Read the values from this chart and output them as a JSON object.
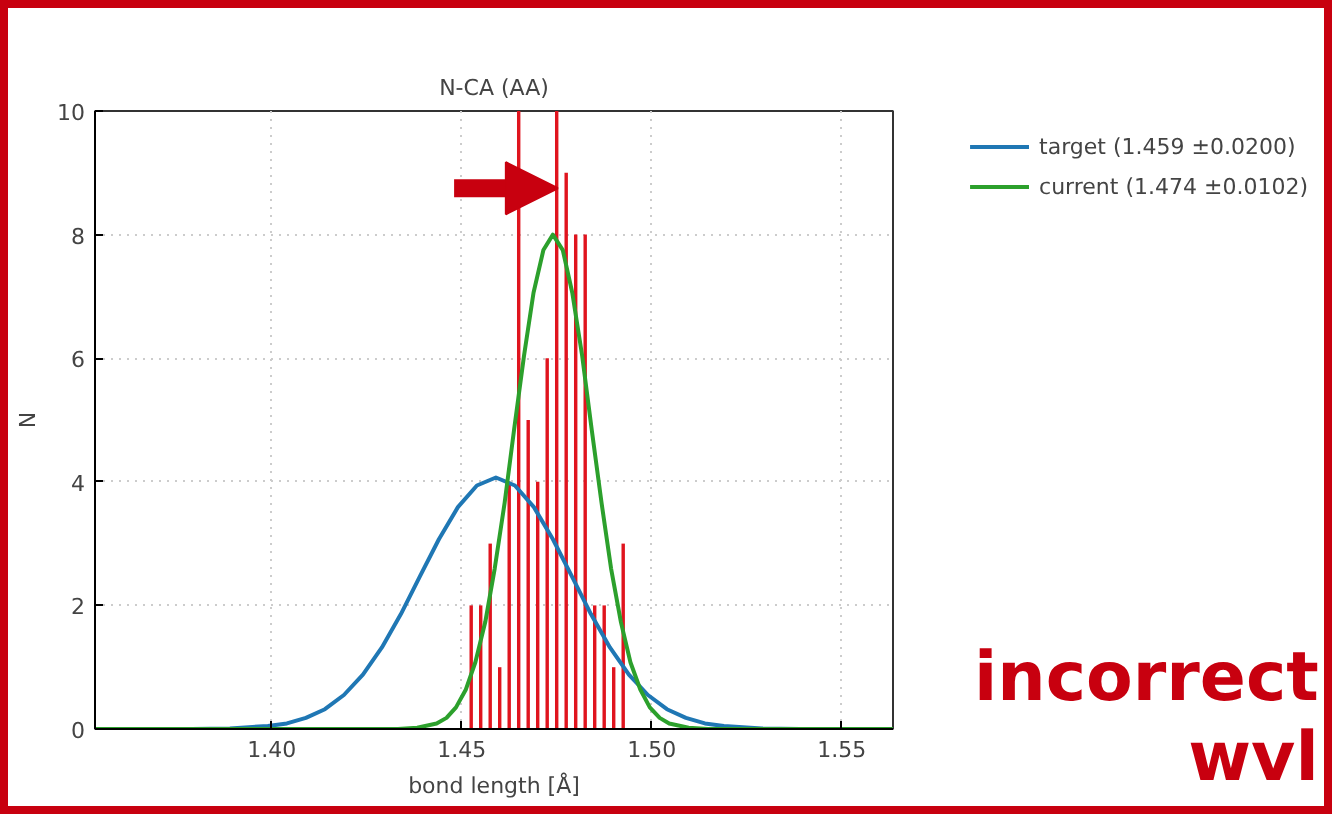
{
  "chart_data": {
    "type": "bar",
    "title": "N-CA (AA)",
    "xlabel": "bond length [Å]",
    "ylabel": "N",
    "xlim": [
      1.3535,
      1.5635
    ],
    "xticks": [
      {
        "value": 1.4,
        "label": "1.40"
      },
      {
        "value": 1.45,
        "label": "1.45"
      },
      {
        "value": 1.5,
        "label": "1.50"
      },
      {
        "value": 1.55,
        "label": "1.55"
      }
    ],
    "ylim": [
      0,
      10
    ],
    "yticks": [
      0,
      2,
      4,
      6,
      8,
      10
    ],
    "grid": true,
    "legend": "top right",
    "annotations": [
      "incorrect wvl"
    ],
    "series": [
      {
        "type": "bar",
        "color": "#e0141e",
        "x": [
          1.4525,
          1.455,
          1.4575,
          1.46,
          1.4625,
          1.465,
          1.4675,
          1.47,
          1.4725,
          1.475,
          1.4775,
          1.48,
          1.4825,
          1.485,
          1.4875,
          1.49,
          1.4925
        ],
        "values": [
          2,
          2,
          3,
          1,
          4,
          10,
          5,
          4,
          6,
          10,
          9,
          8,
          8,
          2,
          2,
          1,
          3
        ]
      },
      {
        "type": "line",
        "name": "target (1.459 ±0.0200)",
        "color": "#1f77b4",
        "x": [
          1.3535,
          1.379,
          1.389,
          1.399,
          1.404,
          1.409,
          1.414,
          1.419,
          1.424,
          1.429,
          1.434,
          1.439,
          1.444,
          1.449,
          1.454,
          1.459,
          1.464,
          1.469,
          1.474,
          1.479,
          1.484,
          1.489,
          1.494,
          1.499,
          1.504,
          1.509,
          1.514,
          1.519,
          1.529,
          1.539,
          1.5635
        ],
        "values": [
          0,
          0,
          0.01,
          0.05,
          0.09,
          0.18,
          0.32,
          0.55,
          0.88,
          1.32,
          1.86,
          2.47,
          3.07,
          3.59,
          3.94,
          4.07,
          3.94,
          3.59,
          3.07,
          2.47,
          1.86,
          1.32,
          0.88,
          0.55,
          0.32,
          0.18,
          0.09,
          0.05,
          0.01,
          0,
          0
        ]
      },
      {
        "type": "line",
        "name": "current (1.474 ±0.0102)",
        "color": "#2ca02c",
        "x": [
          1.3535,
          1.4332,
          1.4383,
          1.4434,
          1.446,
          1.4485,
          1.4511,
          1.4536,
          1.4562,
          1.4587,
          1.4613,
          1.4638,
          1.4664,
          1.4689,
          1.4715,
          1.474,
          1.4766,
          1.4791,
          1.4817,
          1.4842,
          1.4868,
          1.4893,
          1.4919,
          1.4944,
          1.497,
          1.4995,
          1.5021,
          1.5046,
          1.5097,
          1.5148,
          1.5635
        ],
        "values": [
          0,
          0,
          0.02,
          0.09,
          0.18,
          0.35,
          0.64,
          1.08,
          1.73,
          2.6,
          3.66,
          4.85,
          6.04,
          7.06,
          7.75,
          8.0,
          7.75,
          7.06,
          6.04,
          4.85,
          3.66,
          2.6,
          1.73,
          1.08,
          0.64,
          0.35,
          0.18,
          0.09,
          0.02,
          0,
          0
        ]
      }
    ]
  }
}
